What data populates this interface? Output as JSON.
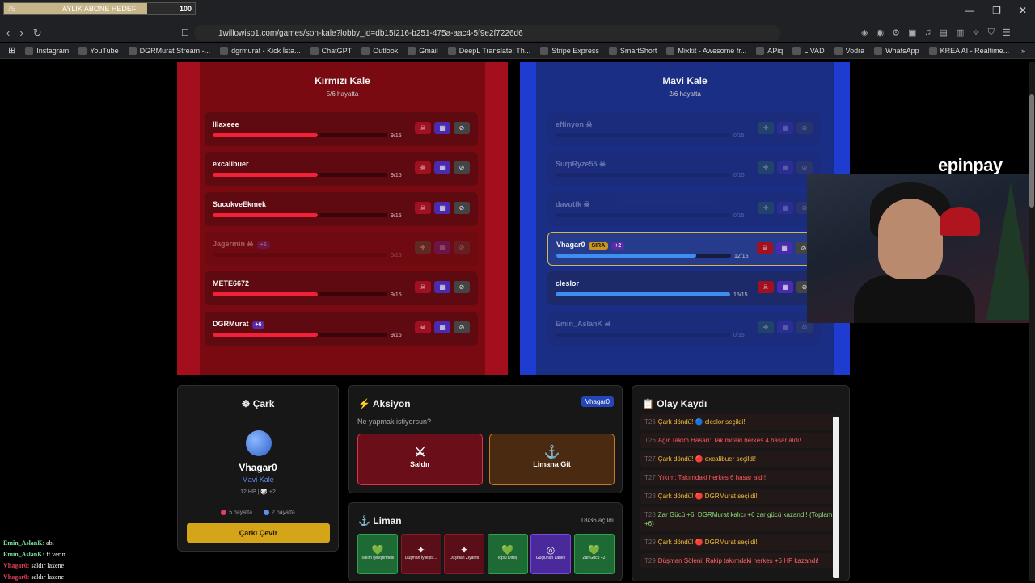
{
  "overlay": {
    "goal_current": "75",
    "goal_label": "AYLIK ABONE HEDEFİ",
    "goal_target": "100",
    "goal_progress": 0.75
  },
  "browser": {
    "url": "1willowisp1.com/games/son-kale?lobby_id=db15f216-b251-475a-aac4-5f9e2f7226d6",
    "bookmarks": [
      "Instagram",
      "YouTube",
      "DGRMurat Stream -...",
      "dgrmurat - Kick İsta...",
      "ChatGPT",
      "Outlook",
      "Gmail",
      "DeepL Translate: Th...",
      "Stripe Express",
      "SmartShort",
      "Mixkit - Awesome fr...",
      "APiq",
      "LIVAD",
      "Vodra",
      "WhatsApp",
      "KREA AI - Realtime..."
    ]
  },
  "red": {
    "title": "Kırmızı Kale",
    "subtitle": "5/6 hayatta",
    "players": [
      {
        "name": "Illaxeee",
        "hp": "9/15",
        "hp_frac": 0.6
      },
      {
        "name": "excalibuer",
        "hp": "9/15",
        "hp_frac": 0.6
      },
      {
        "name": "SucukveEkmek",
        "hp": "9/15",
        "hp_frac": 0.6
      },
      {
        "name": "Jagermin",
        "hp": "0/15",
        "hp_frac": 0,
        "bonus": "+6"
      },
      {
        "name": "METE6672",
        "hp": "9/15",
        "hp_frac": 0.6
      },
      {
        "name": "DGRMurat",
        "hp": "9/15",
        "hp_frac": 0.6,
        "bonus": "+6"
      }
    ]
  },
  "blue": {
    "title": "Mavi Kale",
    "subtitle": "2/6 hayatta",
    "players": [
      {
        "name": "effinyon",
        "hp": "0/15",
        "hp_frac": 0
      },
      {
        "name": "SurpRyze55",
        "hp": "0/15",
        "hp_frac": 0
      },
      {
        "name": "davuttk",
        "hp": "0/15",
        "hp_frac": 0
      },
      {
        "name": "Vhagar0",
        "hp": "12/15",
        "hp_frac": 0.8,
        "tag": "SIRA",
        "bonus": "+2"
      },
      {
        "name": "cleslor",
        "hp": "15/15",
        "hp_frac": 1.0
      },
      {
        "name": "Emin_AslanK",
        "hp": "0/15",
        "hp_frac": 0
      }
    ]
  },
  "logo": "epinpay",
  "cark": {
    "title": "Çark",
    "name": "Vhagar0",
    "team": "Mavi Kale",
    "stats": "12 HP | 🎲 +2",
    "red_alive": "5 hayatta",
    "blue_alive": "2 hayatta",
    "spin_label": "Çarkı Çevir"
  },
  "aksiyon": {
    "title": "Aksiyon",
    "turn": "Vhagar0",
    "question": "Ne yapmak istiyorsun?",
    "attack": "Saldır",
    "port": "Limana Git"
  },
  "olay": {
    "title": "Olay Kaydı",
    "entries": [
      {
        "t": "T26",
        "text": "Çark döndü! 🔵 cleslor seçildi!",
        "kind": "wheel"
      },
      {
        "t": "T26",
        "text": "Ağır Takım Hasarı: Takımdaki herkes 4 hasar aldı!",
        "kind": "dmg"
      },
      {
        "t": "T27",
        "text": "Çark döndü! 🔴 excalibuer seçildi!",
        "kind": "wheel"
      },
      {
        "t": "T27",
        "text": "Yıkım: Takımdaki herkes 6 hasar aldı!",
        "kind": "dmg"
      },
      {
        "t": "T28",
        "text": "Çark döndü! 🔴 DGRMurat seçildi!",
        "kind": "wheel"
      },
      {
        "t": "T28",
        "text": "Zar Gücü +6: DGRMurat kalıcı +6 zar gücü kazandı! (Toplam: +6)",
        "kind": "buff"
      },
      {
        "t": "T29",
        "text": "Çark döndü! 🔴 DGRMurat seçildi!",
        "kind": "wheel"
      },
      {
        "t": "T29",
        "text": "Düşman Şöleni: Rakip takımdaki herkes +6 HP kazandı!",
        "kind": "fest"
      }
    ]
  },
  "liman": {
    "title": "Liman",
    "count": "18/36 açıldı",
    "cards": [
      {
        "label": "Takım İyileştirmesi",
        "icon": "💚",
        "color": "green"
      },
      {
        "label": "Düşman İyileştir...",
        "icon": "✦",
        "color": "red"
      },
      {
        "label": "Düşman Ziyafeti",
        "icon": "✦",
        "color": "red"
      },
      {
        "label": "Toplu Diriliş",
        "icon": "💚",
        "color": "green"
      },
      {
        "label": "Güçlünün Laneti",
        "icon": "◎",
        "color": "purple"
      },
      {
        "label": "Zar Gücü +2",
        "icon": "💚",
        "color": "green"
      }
    ]
  },
  "chat": [
    {
      "user": "Emin_AslanK:",
      "msg": "abi",
      "team": "green"
    },
    {
      "user": "Emin_AslanK:",
      "msg": "ff verin",
      "team": "green"
    },
    {
      "user": "Vhagar0:",
      "msg": "saldır laxene",
      "team": "red"
    },
    {
      "user": "Vhagar0:",
      "msg": "saldır laxene",
      "team": "red"
    }
  ]
}
